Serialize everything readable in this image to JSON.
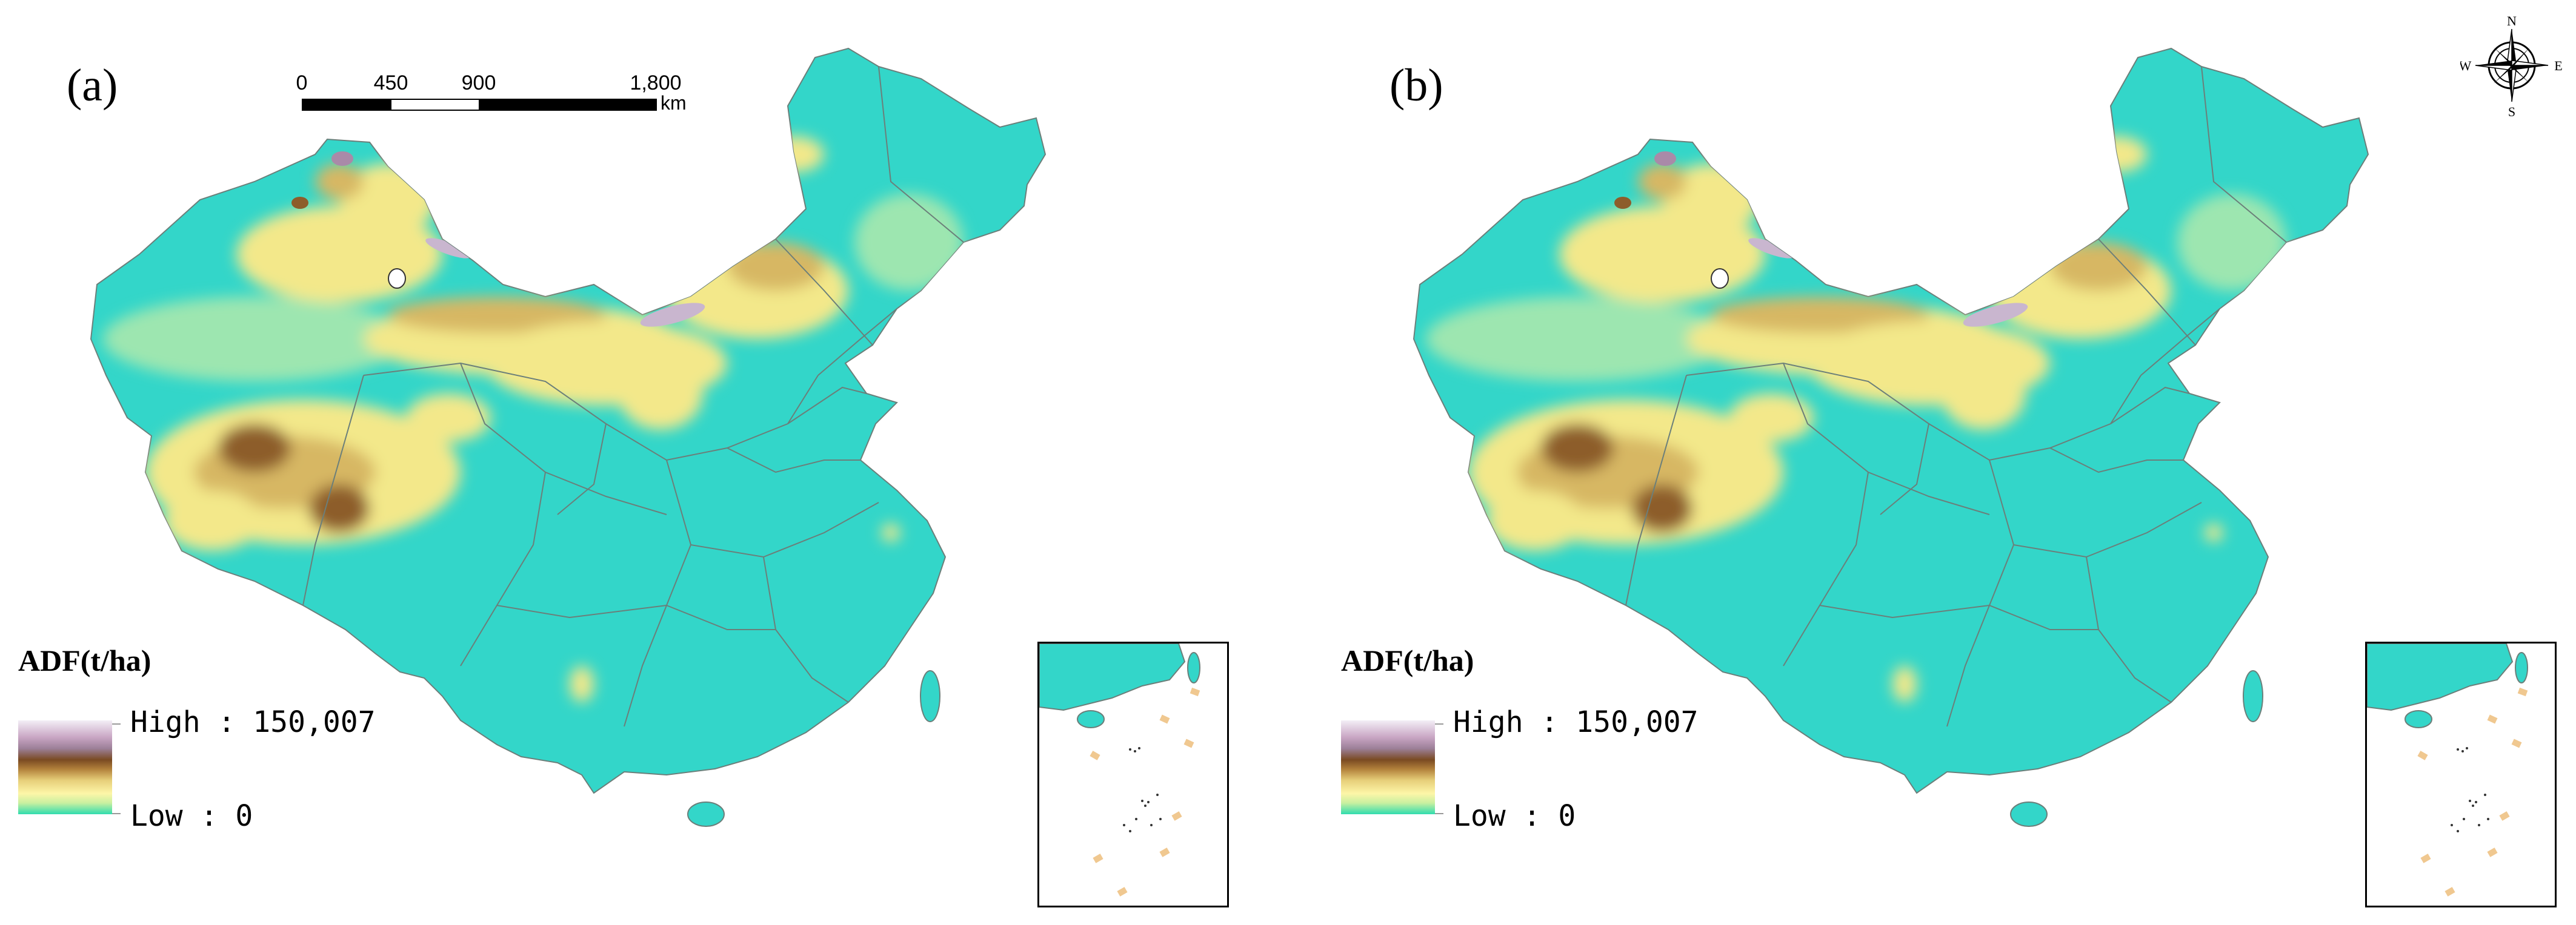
{
  "panels": [
    {
      "label": "(a)",
      "legend_title": "ADF(t/ha)",
      "legend_high": "High : 150,007",
      "legend_low": "Low : 0"
    },
    {
      "label": "(b)",
      "legend_title": "ADF(t/ha)",
      "legend_high": "High : 150,007",
      "legend_low": "Low : 0"
    }
  ],
  "scale_bar": {
    "ticks": [
      "0",
      "450",
      "900",
      "1,800"
    ],
    "unit": "km"
  },
  "compass": {
    "n": "N",
    "s": "S",
    "e": "E",
    "w": "W"
  },
  "colors": {
    "base": "#33d6c9",
    "light_green": "#9de6b0",
    "yellow": "#f3e88a",
    "tan": "#d7b764",
    "brown": "#8d5d2b",
    "purple": "#a98aa8",
    "white": "#f4f0f4",
    "border": "#7a8a86"
  }
}
